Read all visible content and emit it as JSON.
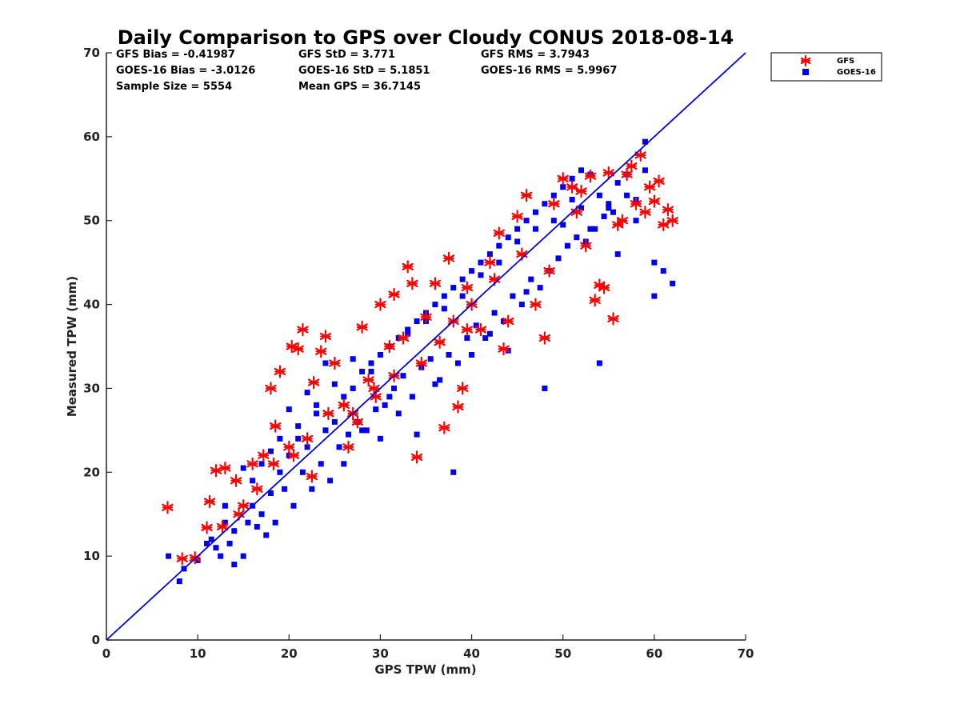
{
  "chart_data": {
    "type": "scatter",
    "title": "Daily Comparison to GPS over Cloudy CONUS 2018-08-14",
    "xlabel": "GPS TPW (mm)",
    "ylabel": "Measured TPW (mm)",
    "xlim": [
      0,
      70
    ],
    "ylim": [
      0,
      70
    ],
    "xticks": [
      "0",
      "10",
      "20",
      "30",
      "40",
      "50",
      "60",
      "70"
    ],
    "yticks": [
      "0",
      "10",
      "20",
      "30",
      "40",
      "50",
      "60",
      "70"
    ],
    "grid": false,
    "legend_position": "outside-top-right",
    "stats": [
      [
        "GFS Bias = -0.41987",
        "GFS StD = 3.771",
        "GFS RMS = 3.7943"
      ],
      [
        "GOES-16 Bias = -3.0126",
        "GOES-16 StD = 5.1851",
        "GOES-16 RMS = 5.9967"
      ],
      [
        "Sample Size = 5554",
        "Mean GPS = 36.7145"
      ]
    ],
    "reference_line": {
      "x": [
        0,
        70
      ],
      "y": [
        0,
        70
      ],
      "color": "#0000dd"
    },
    "series": [
      {
        "name": "GFS",
        "marker": "asterisk",
        "color": "#ff0000",
        "x": [
          6.7,
          8.3,
          9.7,
          11.0,
          11.3,
          12.0,
          12.7,
          13.0,
          14.2,
          15.0,
          16.0,
          17.2,
          18.0,
          18.5,
          19.0,
          20.0,
          20.3,
          21.0,
          21.5,
          22.0,
          22.7,
          23.5,
          24.0,
          24.3,
          25.0,
          26.0,
          27.0,
          28.0,
          28.7,
          29.3,
          30.0,
          31.0,
          31.5,
          32.5,
          33.0,
          33.5,
          34.0,
          35.0,
          36.0,
          37.0,
          37.5,
          38.0,
          38.5,
          39.0,
          39.5,
          40.0,
          41.0,
          42.0,
          43.0,
          43.5,
          44.0,
          45.0,
          46.0,
          47.0,
          48.0,
          49.0,
          50.0,
          51.0,
          52.0,
          53.0,
          53.5,
          54.0,
          55.0,
          55.5,
          56.0,
          57.0,
          57.5,
          58.5,
          59.0,
          59.5,
          60.0,
          60.5,
          61.0,
          61.5,
          62.0,
          14.5,
          16.5,
          18.3,
          20.5,
          22.5,
          26.5,
          27.5,
          29.5,
          31.5,
          34.5,
          36.5,
          39.5,
          42.5,
          45.5,
          48.5,
          51.5,
          52.5,
          54.5,
          56.5,
          58.0
        ],
        "y": [
          15.8,
          9.7,
          9.8,
          13.4,
          16.5,
          20.2,
          13.5,
          20.5,
          19.0,
          16.0,
          21.0,
          22.0,
          30.0,
          25.5,
          32.0,
          23.0,
          35.0,
          34.7,
          37.0,
          24.0,
          30.7,
          34.4,
          36.2,
          27.0,
          33.0,
          28.0,
          27.0,
          37.3,
          31.0,
          30.0,
          40.0,
          35.0,
          41.2,
          36.0,
          44.5,
          42.5,
          21.8,
          38.5,
          42.5,
          25.3,
          45.5,
          38.0,
          27.8,
          30.0,
          42.0,
          40.0,
          37.0,
          45.0,
          48.5,
          34.7,
          38.0,
          50.5,
          53.0,
          40.0,
          36.0,
          52.0,
          55.0,
          54.0,
          53.5,
          55.3,
          40.5,
          42.3,
          55.7,
          38.3,
          49.5,
          55.5,
          56.5,
          57.8,
          51.0,
          54.0,
          52.3,
          54.7,
          49.5,
          51.3,
          50.0,
          15.0,
          18.0,
          21.0,
          22.0,
          19.5,
          23.0,
          26.0,
          29.0,
          31.5,
          33.0,
          35.5,
          37.0,
          43.0,
          46.0,
          44.0,
          51.0,
          47.0,
          42.0,
          50.0,
          52.0
        ]
      },
      {
        "name": "GOES-16",
        "marker": "square",
        "color": "#0000ee",
        "x": [
          6.8,
          8.5,
          10.0,
          11.0,
          11.5,
          12.5,
          13.0,
          13.5,
          14.0,
          15.0,
          15.5,
          16.0,
          16.5,
          17.0,
          17.5,
          18.0,
          18.5,
          19.0,
          19.5,
          20.0,
          20.5,
          21.0,
          21.5,
          22.0,
          22.5,
          23.0,
          23.5,
          24.0,
          24.5,
          25.0,
          25.5,
          26.0,
          26.5,
          27.0,
          27.5,
          28.0,
          28.5,
          29.0,
          29.5,
          30.0,
          30.5,
          31.0,
          31.5,
          32.0,
          32.5,
          33.0,
          33.5,
          34.0,
          34.5,
          35.0,
          35.5,
          36.0,
          36.5,
          37.0,
          37.5,
          38.0,
          38.5,
          39.0,
          39.5,
          40.0,
          40.5,
          41.0,
          41.5,
          42.0,
          42.5,
          43.0,
          43.5,
          44.0,
          44.5,
          45.0,
          45.5,
          46.0,
          46.5,
          47.0,
          47.5,
          48.0,
          48.5,
          49.0,
          49.5,
          50.0,
          50.5,
          51.0,
          51.5,
          52.0,
          52.5,
          53.0,
          53.5,
          54.0,
          54.5,
          55.0,
          55.5,
          56.0,
          57.0,
          58.0,
          59.0,
          60.0,
          61.0,
          62.0,
          8.0,
          12.0,
          14.0,
          16.0,
          18.0,
          20.0,
          22.0,
          24.0,
          26.0,
          28.0,
          30.0,
          32.0,
          34.0,
          36.0,
          38.0,
          40.0,
          42.0,
          44.0,
          46.0,
          48.0,
          50.0,
          52.0,
          54.0,
          56.0,
          58.0,
          60.0,
          13.0,
          15.0,
          17.0,
          19.0,
          21.0,
          23.0,
          25.0,
          27.0,
          29.0,
          31.0,
          33.0,
          35.0,
          37.0,
          39.0,
          41.0,
          43.0,
          45.0,
          47.0,
          49.0,
          51.0,
          53.0,
          55.0,
          57.0,
          59.0
        ],
        "y": [
          10.0,
          8.5,
          9.5,
          11.5,
          12.0,
          10.0,
          14.0,
          11.5,
          13.0,
          10.0,
          14.0,
          16.0,
          13.5,
          15.0,
          12.5,
          17.5,
          14.0,
          20.0,
          18.0,
          22.0,
          16.0,
          24.0,
          20.0,
          23.0,
          18.0,
          28.0,
          21.0,
          25.0,
          19.0,
          26.0,
          23.0,
          29.0,
          24.5,
          30.0,
          26.0,
          32.0,
          25.0,
          33.0,
          27.5,
          34.0,
          28.0,
          35.0,
          30.0,
          36.0,
          31.5,
          37.0,
          29.0,
          38.0,
          32.5,
          39.0,
          33.5,
          40.0,
          31.0,
          41.0,
          34.0,
          42.0,
          33.0,
          43.0,
          36.0,
          44.0,
          37.5,
          45.0,
          36.0,
          46.0,
          39.0,
          47.0,
          38.0,
          48.0,
          41.0,
          49.0,
          40.0,
          50.0,
          43.0,
          51.0,
          42.0,
          52.0,
          44.0,
          53.0,
          45.5,
          54.0,
          47.0,
          55.0,
          48.0,
          56.0,
          47.5,
          55.5,
          49.0,
          53.0,
          50.5,
          52.0,
          51.0,
          54.5,
          55.5,
          50.0,
          59.4,
          45.0,
          44.0,
          42.5,
          7.0,
          11.0,
          9.0,
          19.0,
          22.5,
          27.5,
          29.5,
          33.0,
          21.0,
          25.0,
          24.0,
          27.0,
          24.5,
          30.5,
          20.0,
          34.0,
          36.5,
          34.5,
          41.5,
          30.0,
          49.5,
          51.5,
          33.0,
          46.0,
          52.5,
          41.0,
          16.0,
          20.5,
          21.0,
          24.0,
          25.5,
          27.0,
          30.5,
          33.5,
          32.0,
          29.0,
          36.5,
          38.0,
          39.5,
          41.0,
          43.5,
          45.0,
          47.5,
          49.0,
          50.0,
          52.5,
          49.0,
          51.5,
          53.0,
          56.0
        ]
      }
    ]
  }
}
